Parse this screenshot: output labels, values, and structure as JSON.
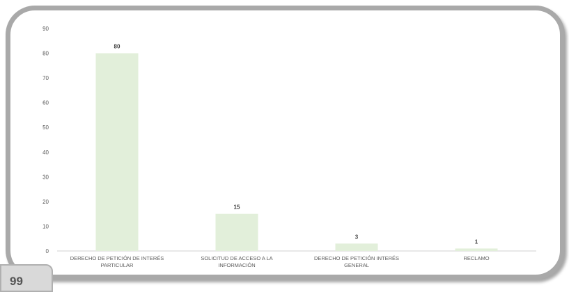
{
  "page": {
    "number": "99"
  },
  "chart_data": {
    "type": "bar",
    "title": "",
    "xlabel": "",
    "ylabel": "",
    "categories": [
      [
        "DERECHO DE PETICIÓN DE INTERÉS",
        "PARTICULAR"
      ],
      [
        "SOLICITUD DE ACCESO A LA",
        "INFORMACIÓN"
      ],
      [
        "DERECHO DE PETICIÓN INTERÉS",
        "GENERAL"
      ],
      [
        "RECLAMO"
      ]
    ],
    "values": [
      80,
      15,
      3,
      1
    ],
    "ylim": [
      0,
      90
    ],
    "yticks": [
      0,
      10,
      20,
      30,
      40,
      50,
      60,
      70,
      80,
      90
    ],
    "grid": false,
    "legend": "none",
    "bar_color": "#e2efda",
    "axis_color": "#d0d0d0",
    "text_color": "#595959"
  }
}
